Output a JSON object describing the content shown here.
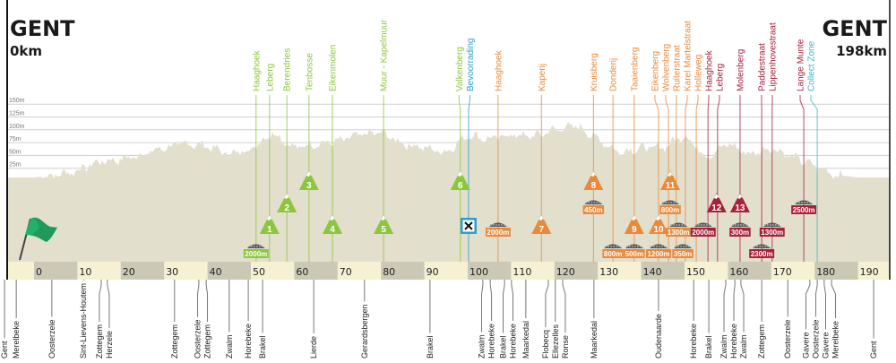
{
  "header": {
    "start_city": "GENT",
    "start_km": "0km",
    "finish_city": "GENT",
    "finish_km": "198km"
  },
  "colors": {
    "green": "#8cc63e",
    "orange": "#e88a3c",
    "red": "#a6213b",
    "blue": "#2a9fd0",
    "teal": "#3ab6c6",
    "profile": "#e2dfcc",
    "bar_light": "#f6f1d3",
    "bar_dark": "#cbc9b6"
  },
  "elevation_axis": [
    "150m",
    "125m",
    "100m",
    "75m",
    "50m",
    "25m"
  ],
  "elevation_axis_values": [
    150,
    125,
    100,
    75,
    50,
    25
  ],
  "km_ticks": [
    0,
    10,
    20,
    30,
    40,
    50,
    60,
    70,
    80,
    90,
    100,
    110,
    120,
    130,
    140,
    150,
    160,
    170,
    180,
    190
  ],
  "profile_km": [
    -7,
    0,
    5,
    10,
    15,
    20,
    25,
    30,
    35,
    40,
    45,
    50,
    55,
    60,
    65,
    70,
    75,
    80,
    85,
    90,
    95,
    100,
    105,
    110,
    115,
    120,
    125,
    130,
    135,
    140,
    145,
    150,
    155,
    160,
    165,
    170,
    175,
    180,
    185,
    190,
    198
  ],
  "profile_elevation_m": [
    7,
    7,
    12,
    20,
    38,
    42,
    52,
    65,
    73,
    68,
    52,
    62,
    95,
    65,
    73,
    77,
    90,
    95,
    73,
    65,
    56,
    90,
    82,
    90,
    87,
    100,
    108,
    82,
    56,
    65,
    65,
    90,
    47,
    73,
    52,
    65,
    47,
    30,
    12,
    7,
    7
  ],
  "top_labels": [
    {
      "name": "Haaghoek",
      "km": 51.2,
      "color": "green"
    },
    {
      "name": "Leberg",
      "km": 54.3,
      "color": "green"
    },
    {
      "name": "Berendries",
      "km": 58.3,
      "color": "green"
    },
    {
      "name": "Tenbosse",
      "km": 63.4,
      "color": "green"
    },
    {
      "name": "Eikenmolen",
      "km": 68.8,
      "color": "green"
    },
    {
      "name": "Muur - Kapelmuur",
      "km": 80.6,
      "color": "green"
    },
    {
      "name": "Valkenberg",
      "km": 98.3,
      "color": "green"
    },
    {
      "name": "Bevoorrading",
      "km": 100.2,
      "color": "blue"
    },
    {
      "name": "Haaghoek",
      "km": 107.0,
      "color": "orange"
    },
    {
      "name": "Kaperij",
      "km": 117.0,
      "color": "orange"
    },
    {
      "name": "Kruisberg",
      "km": 129.0,
      "color": "orange"
    },
    {
      "name": "Donderij",
      "km": 133.5,
      "color": "orange"
    },
    {
      "name": "Taaienberg",
      "km": 138.4,
      "color": "orange"
    },
    {
      "name": "Eikenberg",
      "km": 144.0,
      "color": "orange"
    },
    {
      "name": "Wolvenberg",
      "km": 146.3,
      "color": "orange"
    },
    {
      "name": "Ruiterstraat",
      "km": 148.1,
      "color": "orange"
    },
    {
      "name": "Karel Martelstraat",
      "km": 150.2,
      "color": "orange"
    },
    {
      "name": "Holleweg",
      "km": 152.7,
      "color": "orange"
    },
    {
      "name": "Haaghoek",
      "km": 155.4,
      "color": "red"
    },
    {
      "name": "Leberg",
      "km": 157.6,
      "color": "red"
    },
    {
      "name": "Molenberg",
      "km": 162.8,
      "color": "red"
    },
    {
      "name": "Paddestraat",
      "km": 167.8,
      "color": "red"
    },
    {
      "name": "Lippenhovestraat",
      "km": 170.2,
      "color": "red"
    },
    {
      "name": "Lange Munte",
      "km": 177.5,
      "color": "red"
    },
    {
      "name": "Collect Zone",
      "km": 180.6,
      "color": "teal"
    }
  ],
  "climbs": [
    {
      "number": "1",
      "km": 54.3,
      "color": "green"
    },
    {
      "number": "2",
      "km": 58.3,
      "color": "green"
    },
    {
      "number": "3",
      "km": 63.4,
      "color": "green"
    },
    {
      "number": "4",
      "km": 68.8,
      "color": "green"
    },
    {
      "number": "5",
      "km": 80.6,
      "color": "green"
    },
    {
      "number": "6",
      "km": 98.3,
      "color": "green"
    },
    {
      "number": "7",
      "km": 117.0,
      "color": "orange"
    },
    {
      "number": "8",
      "km": 129.0,
      "color": "orange"
    },
    {
      "number": "9",
      "km": 138.4,
      "color": "orange"
    },
    {
      "number": "10",
      "km": 144.0,
      "color": "orange"
    },
    {
      "number": "11",
      "km": 146.7,
      "color": "orange"
    },
    {
      "number": "12",
      "km": 157.4,
      "color": "red"
    },
    {
      "number": "13",
      "km": 162.8,
      "color": "red"
    }
  ],
  "cobbles": [
    {
      "length": "2000m",
      "km": 51.2,
      "color": "green"
    },
    {
      "length": "2000m",
      "km": 107.0,
      "color": "orange"
    },
    {
      "length": "450m",
      "km": 129.0,
      "color": "orange"
    },
    {
      "length": "800m",
      "km": 133.5,
      "color": "orange"
    },
    {
      "length": "500m",
      "km": 138.4,
      "color": "orange"
    },
    {
      "length": "1200m",
      "km": 144.0,
      "color": "orange"
    },
    {
      "length": "800m",
      "km": 146.7,
      "color": "orange"
    },
    {
      "length": "1300m",
      "km": 148.6,
      "color": "orange"
    },
    {
      "length": "350m",
      "km": 149.6,
      "color": "orange"
    },
    {
      "length": "2000m",
      "km": 154.3,
      "color": "red"
    },
    {
      "length": "300m",
      "km": 162.8,
      "color": "red"
    },
    {
      "length": "1300m",
      "km": 170.2,
      "color": "red"
    },
    {
      "length": "2300m",
      "km": 167.8,
      "color": "red"
    },
    {
      "length": "2500m",
      "km": 177.5,
      "color": "red"
    }
  ],
  "feed_zone": {
    "km": 100.2,
    "icon": "fork-knife-icon"
  },
  "towns": [
    {
      "name": "Gent",
      "km": -6.8
    },
    {
      "name": "Merelbeke",
      "km": -4.1
    },
    {
      "name": "Oosterzele",
      "km": 4.1
    },
    {
      "name": "Sint-Lievens-Houtem",
      "km": 11.4
    },
    {
      "name": "Zottegem",
      "km": 15.5
    },
    {
      "name": "Herzele",
      "km": 16.9
    },
    {
      "name": "Zottegem",
      "km": 32.4
    },
    {
      "name": "Oosterzele",
      "km": 38.0
    },
    {
      "name": "Zottegem",
      "km": 39.7
    },
    {
      "name": "Zwalm",
      "km": 45.0
    },
    {
      "name": "Horebeke",
      "km": 49.4
    },
    {
      "name": "Brakel",
      "km": 52.7
    },
    {
      "name": "Lierde",
      "km": 64.5
    },
    {
      "name": "Gerardsbergen",
      "km": 76.2
    },
    {
      "name": "Brakel",
      "km": 91.3
    },
    {
      "name": "Zwalm",
      "km": 103.5
    },
    {
      "name": "Horebeke",
      "km": 105.2
    },
    {
      "name": "Brakel",
      "km": 108.5
    },
    {
      "name": "Horebeke",
      "km": 110.1
    },
    {
      "name": "Maarkedal",
      "km": 113.4
    },
    {
      "name": "Flobecq",
      "km": 118.6
    },
    {
      "name": "Ellezelles",
      "km": 120.2
    },
    {
      "name": "Ronse",
      "km": 121.9
    },
    {
      "name": "Maarkedal",
      "km": 129.1
    },
    {
      "name": "Oudenaarde",
      "km": 144.0
    },
    {
      "name": "Horebeke",
      "km": 152.1
    },
    {
      "name": "Brakel",
      "km": 155.6
    },
    {
      "name": "Zwalm",
      "km": 159.5
    },
    {
      "name": "Horebeke",
      "km": 161.6
    },
    {
      "name": "Zwalm",
      "km": 163.0
    },
    {
      "name": "Zottegem",
      "km": 167.8
    },
    {
      "name": "Oosterzele",
      "km": 173.8
    },
    {
      "name": "Gavere",
      "km": 178.9
    },
    {
      "name": "Oosterzele",
      "km": 180.6
    },
    {
      "name": "Gavere",
      "km": 182.2
    },
    {
      "name": "Merelbeke",
      "km": 183.9
    },
    {
      "name": "Gent",
      "km": 193.6
    }
  ]
}
